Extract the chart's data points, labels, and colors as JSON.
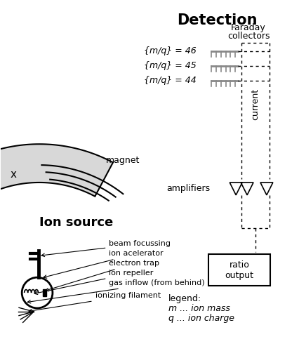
{
  "title": "Detection",
  "faraday_label_line1": "Faraday",
  "faraday_label_line2": "collectors",
  "amplifiers_label": "amplifiers",
  "current_label": "current",
  "ratio_label": "ratio\noutput",
  "magnet_label": "magnet",
  "x_mark": "x",
  "ion_source_label": "Ion source",
  "beam_labels": [
    "{m/q} = 46",
    "{m/q} = 45",
    "{m/q} = 44"
  ],
  "ion_source_components": [
    "beam focussing",
    "ion acelerator",
    "electron trap",
    "ion repeller",
    "gas inflow (from behind)",
    "ionizing filament"
  ],
  "legend_title": "legend:",
  "legend_m": "m ... ion mass",
  "legend_q": "q ... ion charge",
  "bg_color": "#ffffff",
  "fg_color": "#000000",
  "gray_color": "#cccccc",
  "collector_color": "#888888"
}
